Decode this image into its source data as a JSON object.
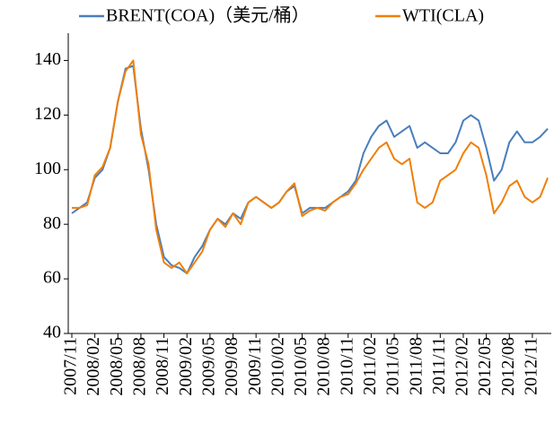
{
  "chart_data": {
    "type": "line",
    "x": [
      "2007/11",
      "2007/12",
      "2008/01",
      "2008/02",
      "2008/03",
      "2008/04",
      "2008/05",
      "2008/06",
      "2008/07",
      "2008/08",
      "2008/09",
      "2008/10",
      "2008/11",
      "2008/12",
      "2009/01",
      "2009/02",
      "2009/03",
      "2009/04",
      "2009/05",
      "2009/06",
      "2009/07",
      "2009/08",
      "2009/09",
      "2009/10",
      "2009/11",
      "2009/12",
      "2010/01",
      "2010/02",
      "2010/03",
      "2010/04",
      "2010/05",
      "2010/06",
      "2010/07",
      "2010/08",
      "2010/09",
      "2010/10",
      "2010/11",
      "2010/12",
      "2011/01",
      "2011/02",
      "2011/03",
      "2011/04",
      "2011/05",
      "2011/06",
      "2011/07",
      "2011/08",
      "2011/09",
      "2011/10",
      "2011/11",
      "2011/12",
      "2012/01",
      "2012/02",
      "2012/03",
      "2012/04",
      "2012/05",
      "2012/06",
      "2012/07",
      "2012/08",
      "2012/09",
      "2012/10",
      "2012/11",
      "2012/12",
      "2013/01"
    ],
    "series": [
      {
        "name": "BRENT(COA)（美元/桶）",
        "color": "#4a7ebb",
        "values": [
          84,
          86,
          88,
          97,
          100,
          108,
          125,
          137,
          138,
          115,
          100,
          80,
          68,
          65,
          64,
          62,
          68,
          72,
          78,
          82,
          80,
          84,
          82,
          88,
          90,
          88,
          86,
          88,
          92,
          94,
          84,
          86,
          86,
          86,
          88,
          90,
          92,
          96,
          106,
          112,
          116,
          118,
          112,
          114,
          116,
          108,
          110,
          108,
          106,
          106,
          110,
          118,
          120,
          118,
          108,
          96,
          100,
          110,
          114,
          110,
          110,
          112,
          115
        ]
      },
      {
        "name": "WTI(CLA)",
        "color": "#f07f09",
        "values": [
          86,
          86,
          87,
          98,
          101,
          108,
          125,
          136,
          140,
          113,
          102,
          78,
          66,
          64,
          66,
          62,
          66,
          70,
          78,
          82,
          79,
          84,
          80,
          88,
          90,
          88,
          86,
          88,
          92,
          95,
          83,
          85,
          86,
          85,
          88,
          90,
          91,
          95,
          100,
          104,
          108,
          110,
          104,
          102,
          104,
          88,
          86,
          88,
          96,
          98,
          100,
          106,
          110,
          108,
          98,
          84,
          88,
          94,
          96,
          90,
          88,
          90,
          97
        ]
      }
    ],
    "xticks": [
      "2007/11",
      "2008/02",
      "2008/05",
      "2008/08",
      "2008/11",
      "2009/02",
      "2009/05",
      "2009/08",
      "2009/11",
      "2010/02",
      "2010/05",
      "2010/08",
      "2010/11",
      "2011/02",
      "2011/05",
      "2011/08",
      "2011/11",
      "2012/02",
      "2012/05",
      "2012/08",
      "2012/11"
    ],
    "ylim": [
      40,
      150
    ],
    "yticks": [
      40,
      60,
      80,
      100,
      120,
      140
    ],
    "legend": "top"
  }
}
